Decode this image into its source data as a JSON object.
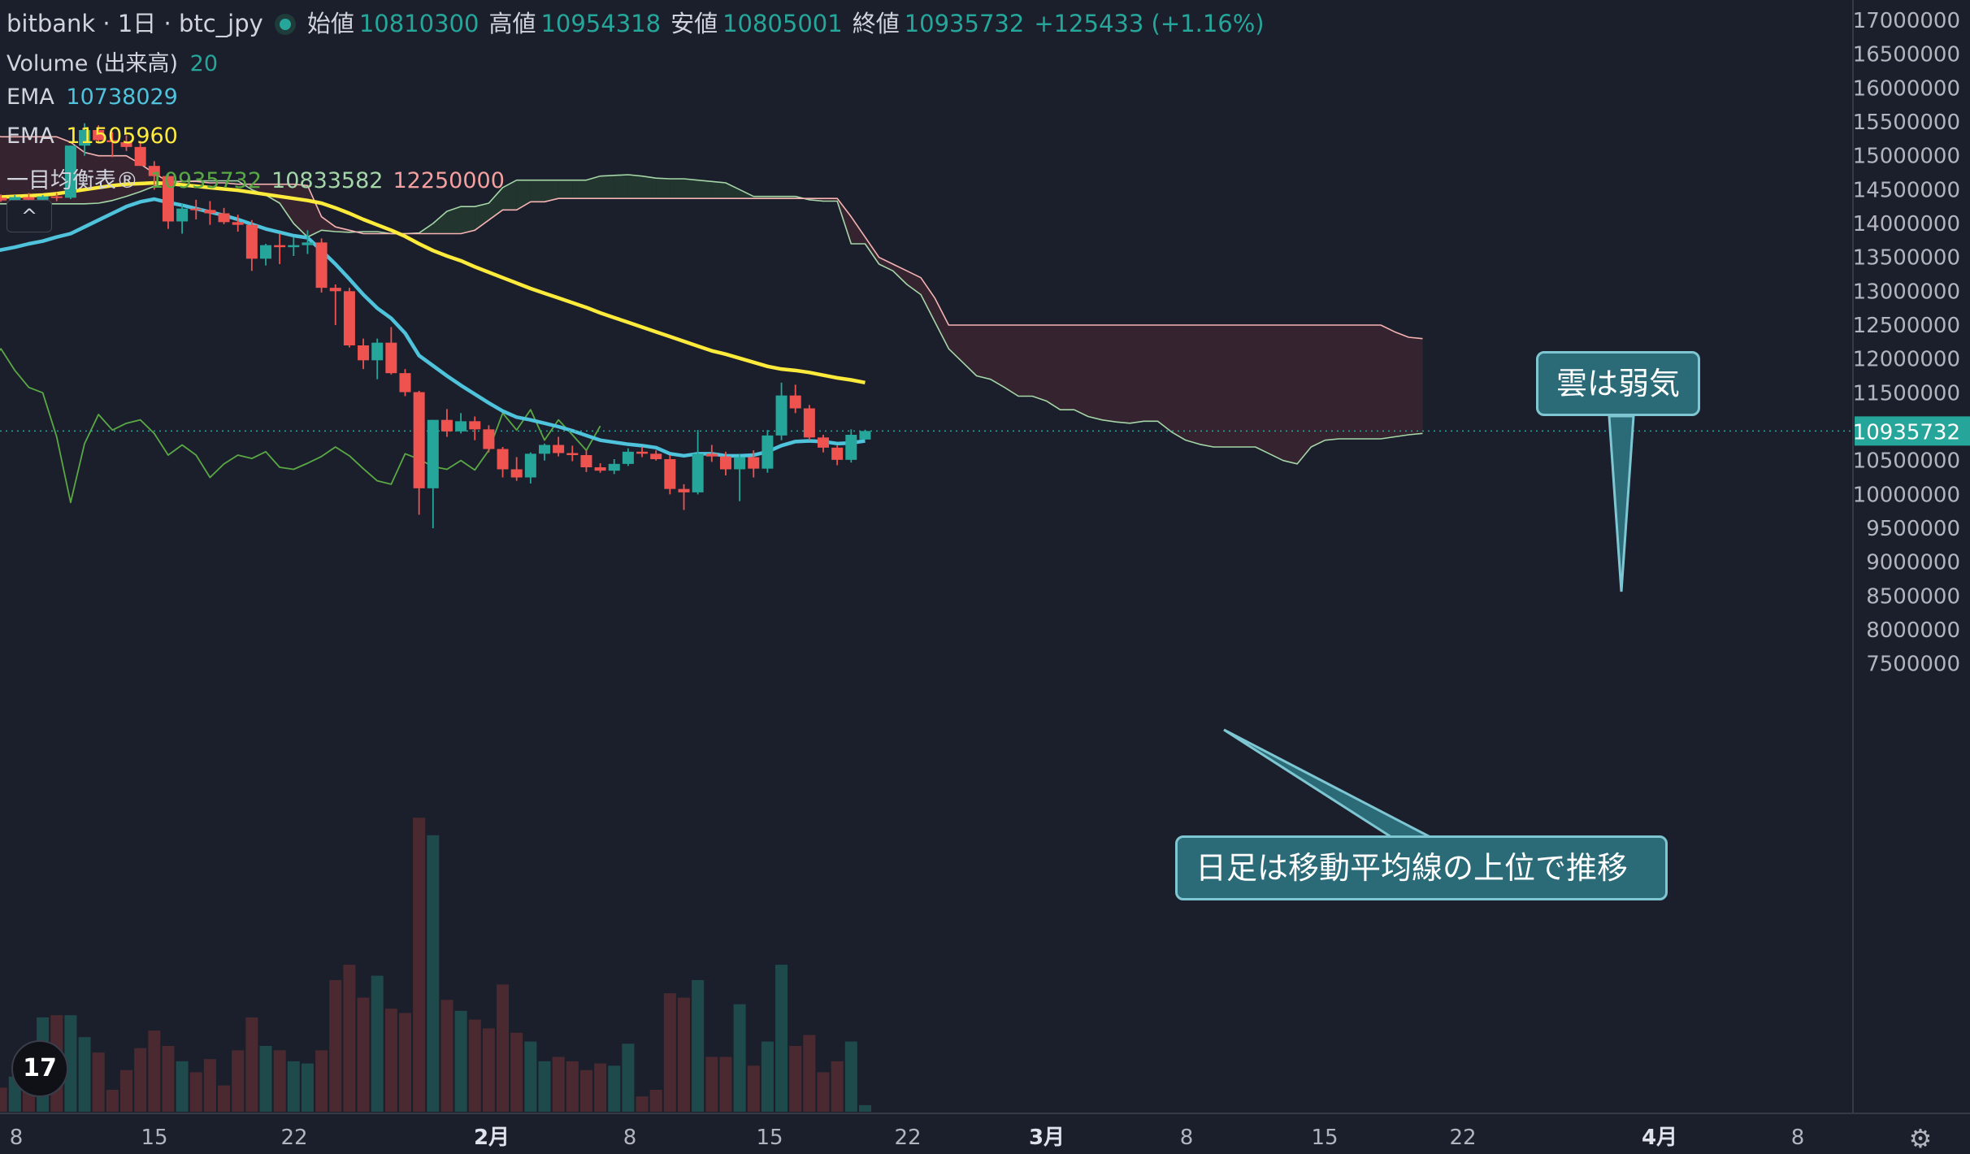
{
  "header": {
    "symbol": "bitbank · 1日 · btc_jpy",
    "open_label": "始値",
    "open": "10810300",
    "high_label": "高値",
    "high": "10954318",
    "low_label": "安値",
    "low": "10805001",
    "close_label": "終値",
    "close": "10935732",
    "change": "+125433 (+1.16%)"
  },
  "indicators": {
    "volume": {
      "label": "Volume (出来高)",
      "value": "20"
    },
    "ema1": {
      "label": "EMA",
      "value": "10738029"
    },
    "ema2": {
      "label": "EMA",
      "value": "11505960"
    },
    "ichimoku": {
      "label": "一目均衡表®",
      "v1": "10935732",
      "v2": "10833582",
      "v3": "12250000"
    }
  },
  "collapse_symbol": "^",
  "annotations": {
    "cloud": "雲は弱気",
    "candles": "日足は移動平均線の上位で推移"
  },
  "logo_text": "17",
  "settings_icon": "⚙",
  "colors": {
    "up": "#26a69a",
    "down": "#ef5350",
    "ema_fast": "#4fc3dc",
    "ema_slow": "#ffeb3b",
    "chikou": "#5aa845",
    "senkou_a": "#a5d6a7",
    "senkou_b": "#f5b3b3",
    "cloud_bear": "#3f2733",
    "cloud_bull": "#233a30",
    "price_tag": "#26a69a"
  },
  "chart_data": {
    "type": "candlestick",
    "symbol": "btc_jpy",
    "timeframe": "1日",
    "x_ticks": [
      "8",
      "15",
      "22",
      "2月",
      "8",
      "15",
      "22",
      "3月",
      "8",
      "15",
      "22",
      "4月",
      "8"
    ],
    "y_ticks": [
      7500000,
      8000000,
      8500000,
      9000000,
      9500000,
      10000000,
      10500000,
      11000000,
      11500000,
      12000000,
      12500000,
      13000000,
      13500000,
      14000000,
      14500000,
      15000000,
      15500000,
      16000000,
      16500000,
      17000000
    ],
    "ylim": [
      7150000,
      17400000
    ],
    "last_price": 10935732,
    "candles": [
      {
        "o": 14350000,
        "h": 14500000,
        "l": 14300000,
        "c": 14380000
      },
      {
        "o": 14380000,
        "h": 14430000,
        "l": 14320000,
        "c": 14340000
      },
      {
        "o": 14340000,
        "h": 14420000,
        "l": 14300000,
        "c": 14390000
      },
      {
        "o": 14390000,
        "h": 14450000,
        "l": 14330000,
        "c": 14350000
      },
      {
        "o": 14350000,
        "h": 14420000,
        "l": 14300000,
        "c": 14400000
      },
      {
        "o": 14400000,
        "h": 14450000,
        "l": 14330000,
        "c": 14380000
      },
      {
        "o": 14380000,
        "h": 15150000,
        "l": 14360000,
        "c": 15150000
      },
      {
        "o": 15150000,
        "h": 15480000,
        "l": 15000000,
        "c": 15380000
      },
      {
        "o": 15380000,
        "h": 15450000,
        "l": 15180000,
        "c": 15230000
      },
      {
        "o": 15230000,
        "h": 15350000,
        "l": 14980000,
        "c": 15200000
      },
      {
        "o": 15200000,
        "h": 15300000,
        "l": 15070000,
        "c": 15130000
      },
      {
        "o": 15130000,
        "h": 15220000,
        "l": 14850000,
        "c": 14850000
      },
      {
        "o": 14850000,
        "h": 14920000,
        "l": 14500000,
        "c": 14700000
      },
      {
        "o": 14700000,
        "h": 14750000,
        "l": 13920000,
        "c": 14030000
      },
      {
        "o": 14030000,
        "h": 14300000,
        "l": 13850000,
        "c": 14220000
      },
      {
        "o": 14220000,
        "h": 14350000,
        "l": 14060000,
        "c": 14200000
      },
      {
        "o": 14200000,
        "h": 14330000,
        "l": 13980000,
        "c": 14150000
      },
      {
        "o": 14150000,
        "h": 14230000,
        "l": 13990000,
        "c": 14020000
      },
      {
        "o": 14020000,
        "h": 14130000,
        "l": 13880000,
        "c": 13980000
      },
      {
        "o": 13980000,
        "h": 14050000,
        "l": 13300000,
        "c": 13480000
      },
      {
        "o": 13480000,
        "h": 13700000,
        "l": 13380000,
        "c": 13680000
      },
      {
        "o": 13680000,
        "h": 13850000,
        "l": 13400000,
        "c": 13650000
      },
      {
        "o": 13650000,
        "h": 13800000,
        "l": 13520000,
        "c": 13680000
      },
      {
        "o": 13680000,
        "h": 13900000,
        "l": 13550000,
        "c": 13720000
      },
      {
        "o": 13720000,
        "h": 13780000,
        "l": 12980000,
        "c": 13050000
      },
      {
        "o": 13050000,
        "h": 13100000,
        "l": 12500000,
        "c": 13000000
      },
      {
        "o": 13000000,
        "h": 13050000,
        "l": 12170000,
        "c": 12200000
      },
      {
        "o": 12200000,
        "h": 12300000,
        "l": 11850000,
        "c": 11980000
      },
      {
        "o": 11980000,
        "h": 12300000,
        "l": 11700000,
        "c": 12240000
      },
      {
        "o": 12240000,
        "h": 12470000,
        "l": 11770000,
        "c": 11790000
      },
      {
        "o": 11790000,
        "h": 11850000,
        "l": 11450000,
        "c": 11510000
      },
      {
        "o": 11510000,
        "h": 11530000,
        "l": 9700000,
        "c": 10090000
      },
      {
        "o": 10090000,
        "h": 11100000,
        "l": 9500000,
        "c": 11100000
      },
      {
        "o": 11100000,
        "h": 11260000,
        "l": 10850000,
        "c": 10930000
      },
      {
        "o": 10930000,
        "h": 11200000,
        "l": 10900000,
        "c": 11080000
      },
      {
        "o": 11080000,
        "h": 11150000,
        "l": 10800000,
        "c": 10960000
      },
      {
        "o": 10960000,
        "h": 11020000,
        "l": 10620000,
        "c": 10670000
      },
      {
        "o": 10670000,
        "h": 10700000,
        "l": 10250000,
        "c": 10370000
      },
      {
        "o": 10370000,
        "h": 10550000,
        "l": 10200000,
        "c": 10250000
      },
      {
        "o": 10250000,
        "h": 10620000,
        "l": 10160000,
        "c": 10600000
      },
      {
        "o": 10600000,
        "h": 10750000,
        "l": 10500000,
        "c": 10730000
      },
      {
        "o": 10730000,
        "h": 10850000,
        "l": 10560000,
        "c": 10610000
      },
      {
        "o": 10610000,
        "h": 10720000,
        "l": 10490000,
        "c": 10580000
      },
      {
        "o": 10580000,
        "h": 10650000,
        "l": 10330000,
        "c": 10400000
      },
      {
        "o": 10400000,
        "h": 10460000,
        "l": 10320000,
        "c": 10350000
      },
      {
        "o": 10350000,
        "h": 10520000,
        "l": 10300000,
        "c": 10450000
      },
      {
        "o": 10450000,
        "h": 10680000,
        "l": 10420000,
        "c": 10630000
      },
      {
        "o": 10630000,
        "h": 10700000,
        "l": 10550000,
        "c": 10600000
      },
      {
        "o": 10600000,
        "h": 10650000,
        "l": 10500000,
        "c": 10520000
      },
      {
        "o": 10520000,
        "h": 10580000,
        "l": 10000000,
        "c": 10080000
      },
      {
        "o": 10080000,
        "h": 10150000,
        "l": 9770000,
        "c": 10030000
      },
      {
        "o": 10030000,
        "h": 10950000,
        "l": 10000000,
        "c": 10600000
      },
      {
        "o": 10600000,
        "h": 10730000,
        "l": 10480000,
        "c": 10560000
      },
      {
        "o": 10560000,
        "h": 10630000,
        "l": 10280000,
        "c": 10370000
      },
      {
        "o": 10370000,
        "h": 10600000,
        "l": 9900000,
        "c": 10550000
      },
      {
        "o": 10550000,
        "h": 10650000,
        "l": 10250000,
        "c": 10380000
      },
      {
        "o": 10380000,
        "h": 10950000,
        "l": 10320000,
        "c": 10870000
      },
      {
        "o": 10870000,
        "h": 11650000,
        "l": 10800000,
        "c": 11460000
      },
      {
        "o": 11460000,
        "h": 11620000,
        "l": 11200000,
        "c": 11270000
      },
      {
        "o": 11270000,
        "h": 11320000,
        "l": 10800000,
        "c": 10840000
      },
      {
        "o": 10840000,
        "h": 10880000,
        "l": 10620000,
        "c": 10690000
      },
      {
        "o": 10690000,
        "h": 10720000,
        "l": 10430000,
        "c": 10510000
      },
      {
        "o": 10510000,
        "h": 10960000,
        "l": 10470000,
        "c": 10880000
      },
      {
        "o": 10810300,
        "h": 10954318,
        "l": 10805001,
        "c": 10935732
      }
    ],
    "volume": [
      1.2,
      1.1,
      1.6,
      3.0,
      4.3,
      4.4,
      4.4,
      3.4,
      2.7,
      1.0,
      1.9,
      2.9,
      3.7,
      3.0,
      2.3,
      1.8,
      2.4,
      1.2,
      2.8,
      4.3,
      3.0,
      2.8,
      2.3,
      2.2,
      2.8,
      6.0,
      6.7,
      5.2,
      6.2,
      4.7,
      4.5,
      13.4,
      12.6,
      5.1,
      4.6,
      4.2,
      3.8,
      5.8,
      3.6,
      3.2,
      2.3,
      2.5,
      2.3,
      1.9,
      2.2,
      2.1,
      3.1,
      0.7,
      1.0,
      5.4,
      5.2,
      6.0,
      2.5,
      2.5,
      4.9,
      2.1,
      3.2,
      6.7,
      3.0,
      3.5,
      1.8,
      2.3,
      3.2,
      0.3
    ],
    "ema_fast": [
      13570000,
      13610000,
      13650000,
      13700000,
      13740000,
      13800000,
      13850000,
      13950000,
      14050000,
      14150000,
      14250000,
      14320000,
      14360000,
      14310000,
      14270000,
      14220000,
      14170000,
      14120000,
      14060000,
      13990000,
      13920000,
      13870000,
      13820000,
      13790000,
      13600000,
      13400000,
      13180000,
      12950000,
      12750000,
      12600000,
      12380000,
      12050000,
      11900000,
      11750000,
      11610000,
      11480000,
      11350000,
      11230000,
      11140000,
      11100000,
      11050000,
      11000000,
      10940000,
      10870000,
      10800000,
      10770000,
      10740000,
      10720000,
      10690000,
      10600000,
      10570000,
      10600000,
      10600000,
      10570000,
      10570000,
      10580000,
      10630000,
      10720000,
      10780000,
      10790000,
      10780000,
      10750000,
      10760000,
      10790000
    ],
    "ema_slow": [
      14380000,
      14390000,
      14400000,
      14410000,
      14420000,
      14440000,
      14470000,
      14500000,
      14530000,
      14560000,
      14580000,
      14590000,
      14600000,
      14590000,
      14570000,
      14550000,
      14530000,
      14510000,
      14490000,
      14460000,
      14430000,
      14400000,
      14370000,
      14340000,
      14300000,
      14230000,
      14150000,
      14060000,
      13980000,
      13900000,
      13810000,
      13700000,
      13600000,
      13520000,
      13450000,
      13360000,
      13280000,
      13200000,
      13120000,
      13040000,
      12970000,
      12900000,
      12830000,
      12760000,
      12680000,
      12610000,
      12540000,
      12470000,
      12400000,
      12330000,
      12260000,
      12190000,
      12120000,
      12070000,
      12010000,
      11950000,
      11890000,
      11850000,
      11830000,
      11800000,
      11760000,
      11720000,
      11690000,
      11650000
    ],
    "chikou": [
      11880000,
      12150000,
      11830000,
      11580000,
      11500000,
      10850000,
      9880000,
      10750000,
      11180000,
      10950000,
      11050000,
      11100000,
      10900000,
      10580000,
      10730000,
      10580000,
      10250000,
      10450000,
      10580000,
      10530000,
      10630000,
      10400000,
      10370000,
      10460000,
      10560000,
      10700000,
      10570000,
      10380000,
      10200000,
      10150000,
      10600000,
      10520000,
      10410000,
      10370000,
      10500000,
      10360000,
      10650000,
      11200000,
      10950000,
      11250000,
      10800000,
      11100000,
      10880000,
      10650000,
      11010000
    ],
    "senkou_a": [
      14300000,
      14290000,
      14290000,
      14290000,
      14290000,
      14290000,
      14290000,
      14290000,
      14300000,
      14340000,
      14400000,
      14470000,
      14550000,
      14610000,
      14620000,
      14630000,
      14630000,
      14630000,
      14630000,
      14500000,
      14420000,
      14300000,
      14000000,
      13800000,
      13900000,
      13880000,
      13870000,
      13880000,
      13880000,
      13850000,
      13850000,
      13860000,
      14000000,
      14180000,
      14250000,
      14250000,
      14300000,
      14530000,
      14640000,
      14640000,
      14640000,
      14640000,
      14640000,
      14640000,
      14700000,
      14710000,
      14720000,
      14700000,
      14670000,
      14660000,
      14660000,
      14640000,
      14620000,
      14600000,
      14500000,
      14400000,
      14400000,
      14400000,
      14400000,
      14350000,
      14330000,
      14330000,
      13700000,
      13700000,
      13400000,
      13300000,
      13100000,
      12950000,
      12550000,
      12150000,
      11950000,
      11750000,
      11700000,
      11580000,
      11450000,
      11450000,
      11380000,
      11250000,
      11250000,
      11150000,
      11100000,
      11070000,
      11050000,
      11080000,
      11080000,
      10920000,
      10800000,
      10740000,
      10700000,
      10700000,
      10700000,
      10700000,
      10600000,
      10500000,
      10450000,
      10700000,
      10800000,
      10820000,
      10820000,
      10820000,
      10820000,
      10850000,
      10880000,
      10900000
    ],
    "senkou_b": [
      15350000,
      15280000,
      15280000,
      15280000,
      15280000,
      15280000,
      15200000,
      15050000,
      15000000,
      15000000,
      15000000,
      14880000,
      14740000,
      14620000,
      14620000,
      14620000,
      14600000,
      14600000,
      14580000,
      14580000,
      14580000,
      14580000,
      14580000,
      14560000,
      14100000,
      13950000,
      13900000,
      13850000,
      13850000,
      13850000,
      13850000,
      13850000,
      13850000,
      13850000,
      13850000,
      13900000,
      14050000,
      14200000,
      14200000,
      14320000,
      14320000,
      14370000,
      14370000,
      14370000,
      14370000,
      14370000,
      14370000,
      14370000,
      14370000,
      14370000,
      14370000,
      14370000,
      14370000,
      14370000,
      14370000,
      14370000,
      14370000,
      14370000,
      14370000,
      14370000,
      14370000,
      14370000,
      14100000,
      13800000,
      13500000,
      13400000,
      13300000,
      13200000,
      12900000,
      12500000,
      12500000,
      12500000,
      12500000,
      12500000,
      12500000,
      12500000,
      12500000,
      12500000,
      12500000,
      12500000,
      12500000,
      12500000,
      12500000,
      12500000,
      12500000,
      12500000,
      12500000,
      12500000,
      12500000,
      12500000,
      12500000,
      12500000,
      12500000,
      12500000,
      12500000,
      12500000,
      12500000,
      12500000,
      12500000,
      12500000,
      12500000,
      12400000,
      12320000,
      12300000
    ]
  }
}
